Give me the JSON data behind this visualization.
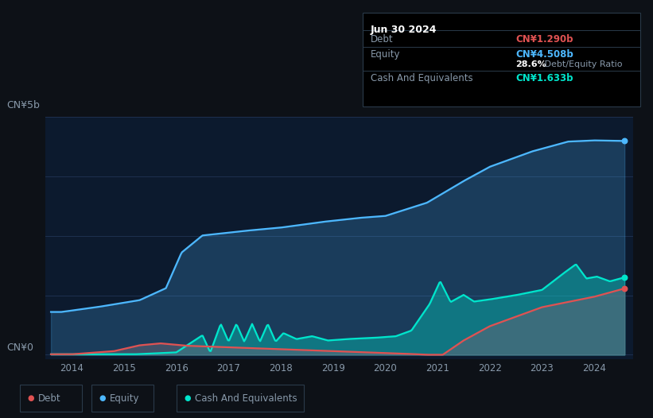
{
  "bg_color": "#0d1117",
  "plot_bg_color": "#0c1a2e",
  "title": "Jun 30 2024",
  "tooltip_debt": "CN¥1.290b",
  "tooltip_equity": "CN¥4.508b",
  "tooltip_ratio_bold": "28.6%",
  "tooltip_ratio_text": " Debt/Equity Ratio",
  "tooltip_cash": "CN¥1.633b",
  "ylabel_top": "CN¥5b",
  "ylabel_bottom": "CN¥0",
  "debt_color": "#e05252",
  "equity_color": "#4db8ff",
  "cash_color": "#00e5cc",
  "grid_color": "#1e3050",
  "text_color": "#8899aa",
  "title_color": "#ffffff",
  "x_ticks": [
    2014,
    2015,
    2016,
    2017,
    2018,
    2019,
    2020,
    2021,
    2022,
    2023,
    2024
  ],
  "x_min": 2013.5,
  "x_max": 2024.75,
  "y_min": -0.1,
  "y_max": 5.0
}
